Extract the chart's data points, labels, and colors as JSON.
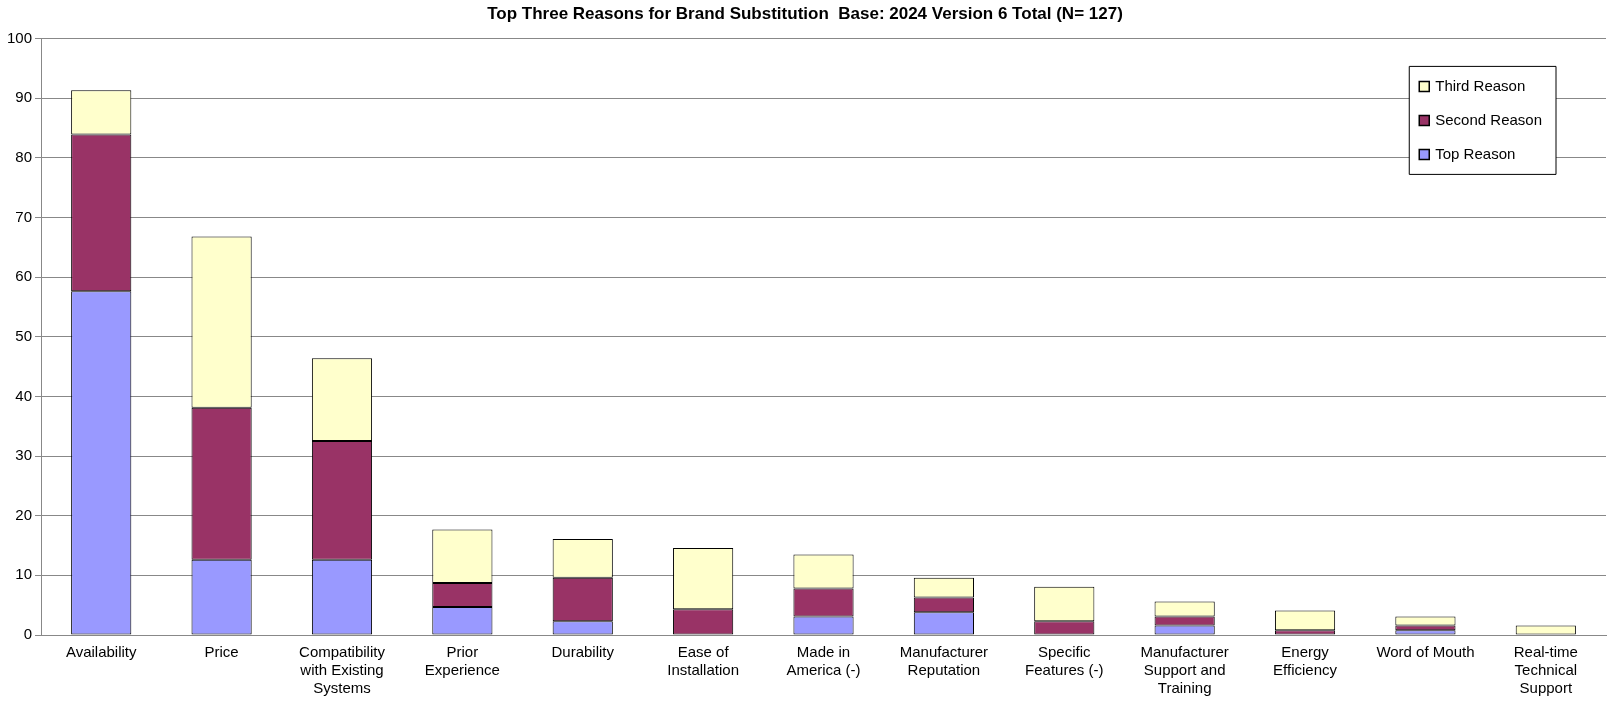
{
  "chart_data": {
    "type": "bar",
    "stacked": true,
    "title": "Top Three Reasons for Brand Substitution  Base: 2024 Version 6 Total (N= 127)",
    "categories": [
      "Availability",
      "Price",
      "Compatibility with Existing Systems",
      "Prior Experience",
      "Durability",
      "Ease of Installation",
      "Made in America (-)",
      "Manufacturer Reputation",
      "Specific Features (-)",
      "Manufacturer Support and Training",
      "Energy Efficiency",
      "Word of Mouth",
      "Real-time Technical Support"
    ],
    "series": [
      {
        "name": "Top Reason",
        "color": "#9999ff",
        "values": [
          57.6,
          12.6,
          12.6,
          4.7,
          2.3,
          0,
          3.1,
          3.8,
          0,
          1.6,
          0,
          0.8,
          0
        ]
      },
      {
        "name": "Second Reason",
        "color": "#993366",
        "values": [
          26.3,
          25.5,
          19.9,
          4.0,
          7.3,
          4.3,
          4.7,
          2.5,
          2.3,
          1.5,
          0.8,
          0.8,
          0
        ]
      },
      {
        "name": "Third Reason",
        "color": "#ffffcc",
        "values": [
          7.4,
          28.7,
          13.9,
          9.0,
          6.5,
          10.3,
          5.7,
          3.3,
          5.8,
          2.5,
          3.3,
          1.5,
          1.6
        ]
      }
    ],
    "ylim": [
      0,
      100
    ],
    "yticks": [
      0,
      10,
      20,
      30,
      40,
      50,
      60,
      70,
      80,
      90,
      100
    ],
    "grid": "y",
    "legend": "top right"
  }
}
